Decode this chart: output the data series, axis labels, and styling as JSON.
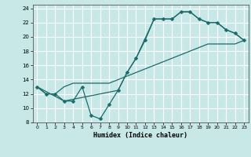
{
  "bg_color": "#c8e8e8",
  "grid_color": "#ffffff",
  "line_color": "#1a6b6b",
  "marker_color": "#1a6b6b",
  "xlabel": "Humidex (Indice chaleur)",
  "xlim": [
    -0.5,
    23.5
  ],
  "ylim": [
    8,
    24.5
  ],
  "xticks": [
    0,
    1,
    2,
    3,
    4,
    5,
    6,
    7,
    8,
    9,
    10,
    11,
    12,
    13,
    14,
    15,
    16,
    17,
    18,
    19,
    20,
    21,
    22,
    23
  ],
  "yticks": [
    8,
    10,
    12,
    14,
    16,
    18,
    20,
    22,
    24
  ],
  "line1_x": [
    0,
    1,
    2,
    3,
    4,
    5,
    6,
    7,
    8,
    9,
    10,
    11,
    12,
    13,
    14,
    15,
    16,
    17,
    18,
    19,
    20,
    21,
    22,
    23
  ],
  "line1_y": [
    13,
    12,
    12,
    11,
    11,
    13,
    9,
    8.5,
    10.5,
    12.5,
    15,
    17,
    19.5,
    22.5,
    22.5,
    22.5,
    23.5,
    23.5,
    22.5,
    22,
    22,
    21,
    20.5,
    19.5
  ],
  "line2_x": [
    0,
    1,
    2,
    3,
    4,
    5,
    6,
    7,
    8,
    9,
    10,
    11,
    12,
    13,
    14,
    15,
    16,
    17,
    18,
    19,
    20,
    21,
    22,
    23
  ],
  "line2_y": [
    13,
    12,
    12,
    13,
    13.5,
    13.5,
    13.5,
    13.5,
    13.5,
    14,
    14.5,
    15,
    15.5,
    16,
    16.5,
    17,
    17.5,
    18,
    18.5,
    19,
    19,
    19,
    19,
    19.5
  ],
  "line3_x": [
    0,
    3,
    9,
    10,
    11,
    13,
    14,
    15,
    16,
    17,
    18,
    19,
    20,
    21,
    22,
    23
  ],
  "line3_y": [
    13,
    11,
    12.5,
    15,
    17,
    22.5,
    22.5,
    22.5,
    23.5,
    23.5,
    22.5,
    22,
    22,
    21,
    20.5,
    19.5
  ]
}
